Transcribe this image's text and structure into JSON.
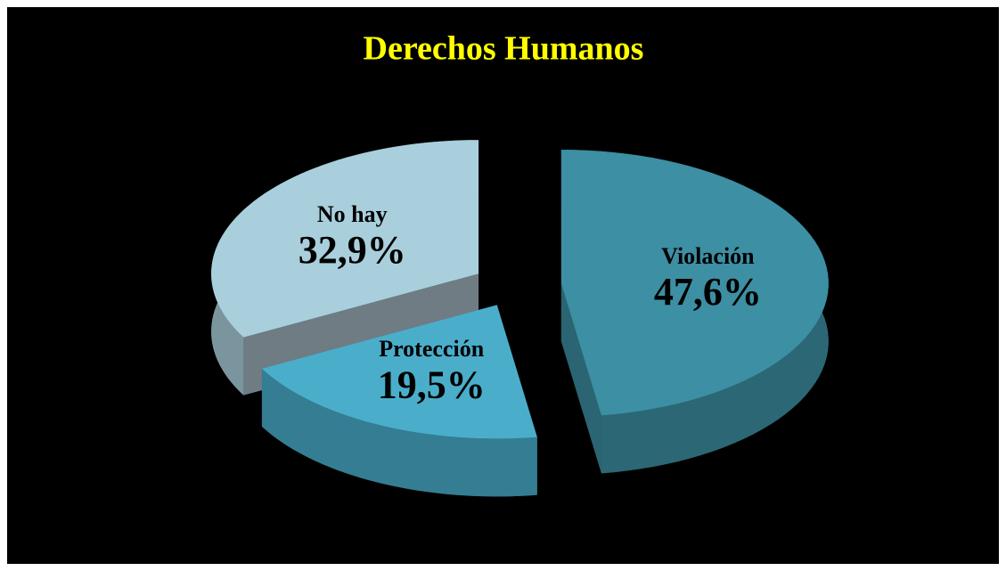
{
  "chart_data": {
    "type": "pie",
    "title": "Derechos Humanos",
    "categories": [
      "Violación",
      "Protección",
      "No hay"
    ],
    "values": [
      47.6,
      19.5,
      32.9
    ],
    "value_labels": [
      "47,6%",
      "19,5%",
      "32,9%"
    ],
    "colors": [
      "#3d8fa3",
      "#4aaecb",
      "#a9cfdc"
    ]
  }
}
